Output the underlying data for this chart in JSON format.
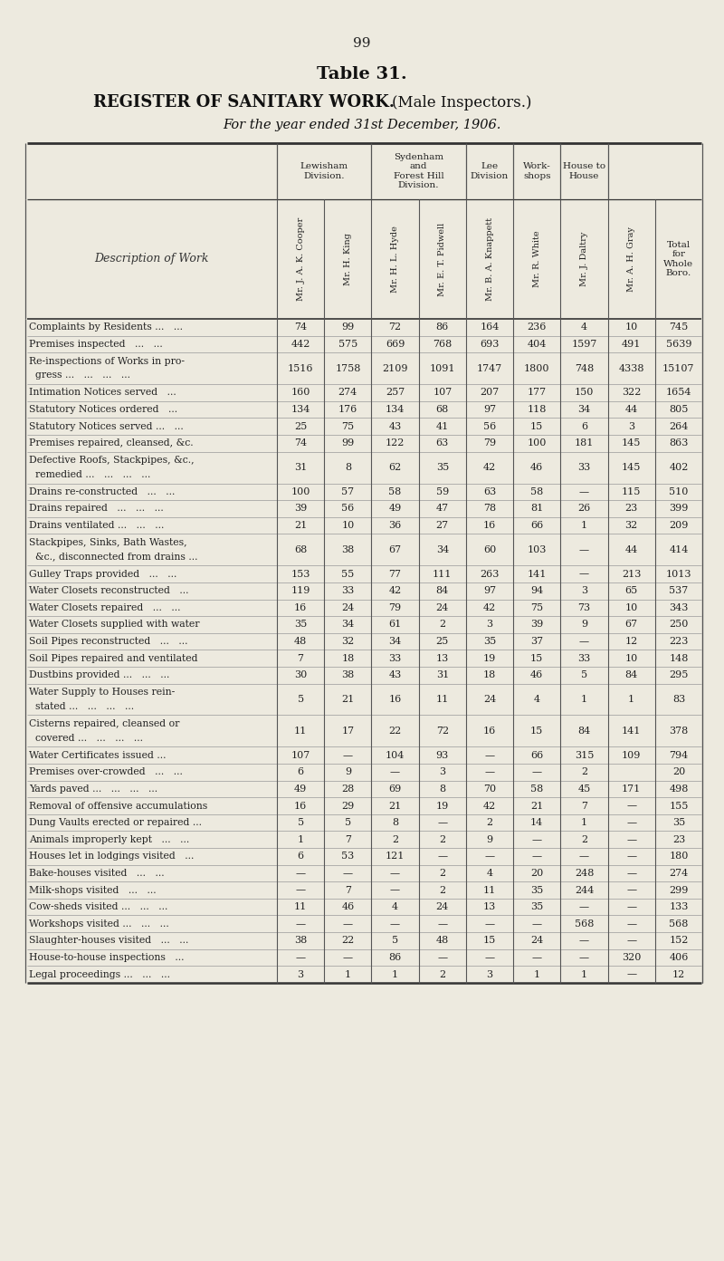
{
  "page_number": "99",
  "title1": "Table 31.",
  "title2": "REGISTER OF SANITARY WORK.",
  "title2b": "(Male Inspectors.)",
  "title3": "For the year ended 31st December, 1906.",
  "bg_color": "#edeadf",
  "col_headers": [
    "Mr. J. A. K. Cooper",
    "Mr. H. King",
    "Mr. H. L. Hyde",
    "Mr. E. T. Pidwell",
    "Mr. B. A. Knappett",
    "Mr. R. White",
    "Mr. J. Daltry",
    "Mr. A. H. Gray",
    "Total\nfor\nWhole\nBoro."
  ],
  "row_label_header": "Description of Work",
  "rows": [
    {
      "label": "Complaints by Residents ...   ...",
      "vals": [
        "74",
        "99",
        "72",
        "86",
        "164",
        "236",
        "4",
        "10",
        "745"
      ]
    },
    {
      "label": "Premises inspected   ...   ...",
      "vals": [
        "442",
        "575",
        "669",
        "768",
        "693",
        "404",
        "1597",
        "491",
        "5639"
      ]
    },
    {
      "label": "Re-inspections of Works in pro-\n  gress ...   ...   ...   ...",
      "vals": [
        "1516",
        "1758",
        "2109",
        "1091",
        "1747",
        "1800",
        "748",
        "4338",
        "15107"
      ]
    },
    {
      "label": "Intimation Notices served   ...",
      "vals": [
        "160",
        "274",
        "257",
        "107",
        "207",
        "177",
        "150",
        "322",
        "1654"
      ]
    },
    {
      "label": "Statutory Notices ordered   ...",
      "vals": [
        "134",
        "176",
        "134",
        "68",
        "97",
        "118",
        "34",
        "44",
        "805"
      ]
    },
    {
      "label": "Statutory Notices served ...   ...",
      "vals": [
        "25",
        "75",
        "43",
        "41",
        "56",
        "15",
        "6",
        "3",
        "264"
      ]
    },
    {
      "label": "Premises repaired, cleansed, &c.",
      "vals": [
        "74",
        "99",
        "122",
        "63",
        "79",
        "100",
        "181",
        "145",
        "863"
      ]
    },
    {
      "label": "Defective Roofs, Stackpipes, &c.,\n  remedied ...   ...   ...   ...",
      "vals": [
        "31",
        "8",
        "62",
        "35",
        "42",
        "46",
        "33",
        "145",
        "402"
      ]
    },
    {
      "label": "Drains re-constructed   ...   ...",
      "vals": [
        "100",
        "57",
        "58",
        "59",
        "63",
        "58",
        "—",
        "115",
        "510"
      ]
    },
    {
      "label": "Drains repaired   ...   ...   ...",
      "vals": [
        "39",
        "56",
        "49",
        "47",
        "78",
        "81",
        "26",
        "23",
        "399"
      ]
    },
    {
      "label": "Drains ventilated ...   ...   ...",
      "vals": [
        "21",
        "10",
        "36",
        "27",
        "16",
        "66",
        "1",
        "32",
        "209"
      ]
    },
    {
      "label": "Stackpipes, Sinks, Bath Wastes,\n  &c., disconnected from drains ...",
      "vals": [
        "68",
        "38",
        "67",
        "34",
        "60",
        "103",
        "—",
        "44",
        "414"
      ]
    },
    {
      "label": "Gulley Traps provided   ...   ...",
      "vals": [
        "153",
        "55",
        "77",
        "111",
        "263",
        "141",
        "—",
        "213",
        "1013"
      ]
    },
    {
      "label": "Water Closets reconstructed   ...",
      "vals": [
        "119",
        "33",
        "42",
        "84",
        "97",
        "94",
        "3",
        "65",
        "537"
      ]
    },
    {
      "label": "Water Closets repaired   ...   ...",
      "vals": [
        "16",
        "24",
        "79",
        "24",
        "42",
        "75",
        "73",
        "10",
        "343"
      ]
    },
    {
      "label": "Water Closets supplied with water",
      "vals": [
        "35",
        "34",
        "61",
        "2",
        "3",
        "39",
        "9",
        "67",
        "250"
      ]
    },
    {
      "label": "Soil Pipes reconstructed   ...   ...",
      "vals": [
        "48",
        "32",
        "34",
        "25",
        "35",
        "37",
        "—",
        "12",
        "223"
      ]
    },
    {
      "label": "Soil Pipes repaired and ventilated",
      "vals": [
        "7",
        "18",
        "33",
        "13",
        "19",
        "15",
        "33",
        "10",
        "148"
      ]
    },
    {
      "label": "Dustbins provided ...   ...   ...",
      "vals": [
        "30",
        "38",
        "43",
        "31",
        "18",
        "46",
        "5",
        "84",
        "295"
      ]
    },
    {
      "label": "Water Supply to Houses rein-\n  stated ...   ...   ...   ...",
      "vals": [
        "5",
        "21",
        "16",
        "11",
        "24",
        "4",
        "1",
        "1",
        "83"
      ]
    },
    {
      "label": "Cisterns repaired, cleansed or\n  covered ...   ...   ...   ...",
      "vals": [
        "11",
        "17",
        "22",
        "72",
        "16",
        "15",
        "84",
        "141",
        "378"
      ]
    },
    {
      "label": "Water Certificates issued ...",
      "vals": [
        "107",
        "—",
        "104",
        "93",
        "—",
        "66",
        "315",
        "109",
        "794"
      ]
    },
    {
      "label": "Premises over-crowded   ...   ...",
      "vals": [
        "6",
        "9",
        "—",
        "3",
        "—",
        "—",
        "2",
        "",
        "20"
      ]
    },
    {
      "label": "Yards paved ...   ...   ...   ...",
      "vals": [
        "49",
        "28",
        "69",
        "8",
        "70",
        "58",
        "45",
        "171",
        "498"
      ]
    },
    {
      "label": "Removal of offensive accumulations",
      "vals": [
        "16",
        "29",
        "21",
        "19",
        "42",
        "21",
        "7",
        "—",
        "155"
      ]
    },
    {
      "label": "Dung Vaults erected or repaired ...",
      "vals": [
        "5",
        "5",
        "8",
        "—",
        "2",
        "14",
        "1",
        "—",
        "35"
      ]
    },
    {
      "label": "Animals improperly kept   ...   ...",
      "vals": [
        "1",
        "7",
        "2",
        "2",
        "9",
        "—",
        "2",
        "—",
        "23"
      ]
    },
    {
      "label": "Houses let in lodgings visited   ...",
      "vals": [
        "6",
        "53",
        "121",
        "—",
        "—",
        "—",
        "—",
        "—",
        "180"
      ]
    },
    {
      "label": "Bake-houses visited   ...   ...",
      "vals": [
        "—",
        "—",
        "—",
        "2",
        "4",
        "20",
        "248",
        "—",
        "274"
      ]
    },
    {
      "label": "Milk-shops visited   ...   ...",
      "vals": [
        "—",
        "7",
        "—",
        "2",
        "11",
        "35",
        "244",
        "—",
        "299"
      ]
    },
    {
      "label": "Cow-sheds visited ...   ...   ...",
      "vals": [
        "11",
        "46",
        "4",
        "24",
        "13",
        "35",
        "—",
        "—",
        "133"
      ]
    },
    {
      "label": "Workshops visited ...   ...   ...",
      "vals": [
        "—",
        "—",
        "—",
        "—",
        "—",
        "—",
        "568",
        "—",
        "568"
      ]
    },
    {
      "label": "Slaughter-houses visited   ...   ...",
      "vals": [
        "38",
        "22",
        "5",
        "48",
        "15",
        "24",
        "—",
        "—",
        "152"
      ]
    },
    {
      "label": "House-to-house inspections   ...",
      "vals": [
        "—",
        "—",
        "86",
        "—",
        "—",
        "—",
        "—",
        "320",
        "406"
      ]
    },
    {
      "label": "Legal proceedings ...   ...   ...",
      "vals": [
        "3",
        "1",
        "1",
        "2",
        "3",
        "1",
        "1",
        "—",
        "12"
      ]
    }
  ]
}
